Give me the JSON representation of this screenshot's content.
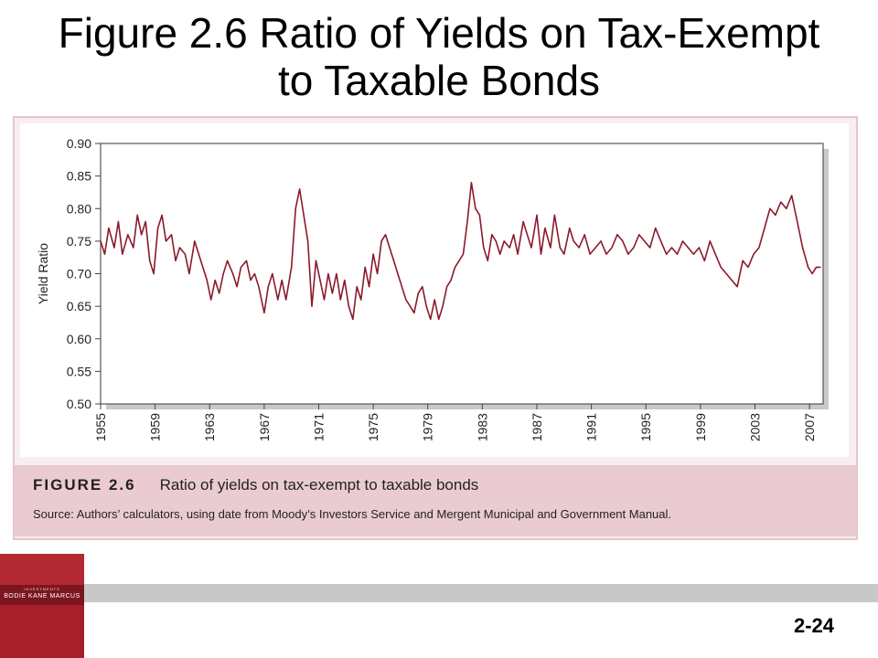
{
  "slide": {
    "title_line1": "Figure 2.6 Ratio of Yields on Tax-Exempt",
    "title_line2": "to Taxable Bonds",
    "page_number": "2-24"
  },
  "caption": {
    "figure_label": "FIGURE 2.6",
    "figure_title": "Ratio of yields on tax-exempt to taxable bonds",
    "source": "Source: Authors’ calculators, using date from Moody’s Investors Service and Mergent Municipal and Government Manual."
  },
  "book": {
    "small_text": "INVESTMENTS",
    "authors": "BODIE  KANE  MARCUS"
  },
  "colors": {
    "line": "#8b1a2b",
    "caption_band": "#e9cbd1",
    "frame_border": "#e6c5cb",
    "book_red": "#a61f2a"
  },
  "chart_data": {
    "type": "line",
    "title": "",
    "xlabel": "",
    "ylabel": "Yield Ratio",
    "xlim": [
      1955,
      2008
    ],
    "ylim": [
      0.5,
      0.9
    ],
    "x_ticks": [
      "1955",
      "1959",
      "1963",
      "1967",
      "1971",
      "1975",
      "1979",
      "1983",
      "1987",
      "1991",
      "1995",
      "1999",
      "2003",
      "2007"
    ],
    "y_ticks": [
      "0.50",
      "0.55",
      "0.60",
      "0.65",
      "0.70",
      "0.75",
      "0.80",
      "0.85",
      "0.90"
    ],
    "grid": false,
    "legend": "none",
    "series": [
      {
        "name": "",
        "x": [
          1955.0,
          1955.3,
          1955.6,
          1956.0,
          1956.3,
          1956.6,
          1957.0,
          1957.4,
          1957.7,
          1958.0,
          1958.3,
          1958.6,
          1958.9,
          1959.2,
          1959.5,
          1959.8,
          1960.2,
          1960.5,
          1960.8,
          1961.2,
          1961.5,
          1961.9,
          1962.2,
          1962.5,
          1962.8,
          1963.1,
          1963.4,
          1963.7,
          1964.0,
          1964.3,
          1964.7,
          1965.0,
          1965.3,
          1965.7,
          1966.0,
          1966.3,
          1966.6,
          1967.0,
          1967.3,
          1967.6,
          1968.0,
          1968.3,
          1968.6,
          1969.0,
          1969.3,
          1969.6,
          1969.9,
          1970.2,
          1970.5,
          1970.8,
          1971.1,
          1971.4,
          1971.7,
          1972.0,
          1972.3,
          1972.6,
          1972.9,
          1973.2,
          1973.5,
          1973.8,
          1974.1,
          1974.4,
          1974.7,
          1975.0,
          1975.3,
          1975.6,
          1975.9,
          1976.2,
          1976.5,
          1976.8,
          1977.1,
          1977.4,
          1977.7,
          1978.0,
          1978.3,
          1978.6,
          1978.9,
          1979.2,
          1979.5,
          1979.8,
          1980.1,
          1980.4,
          1980.7,
          1981.0,
          1981.3,
          1981.6,
          1981.9,
          1982.2,
          1982.5,
          1982.8,
          1983.1,
          1983.4,
          1983.7,
          1984.0,
          1984.3,
          1984.6,
          1985.0,
          1985.3,
          1985.6,
          1986.0,
          1986.3,
          1986.6,
          1987.0,
          1987.3,
          1987.6,
          1988.0,
          1988.3,
          1988.7,
          1989.0,
          1989.4,
          1989.7,
          1990.1,
          1990.5,
          1990.9,
          1991.3,
          1991.7,
          1992.1,
          1992.5,
          1992.9,
          1993.3,
          1993.7,
          1994.1,
          1994.5,
          1994.9,
          1995.3,
          1995.7,
          1996.1,
          1996.5,
          1996.9,
          1997.3,
          1997.7,
          1998.1,
          1998.5,
          1998.9,
          1999.3,
          1999.7,
          2000.1,
          2000.5,
          2000.9,
          2001.3,
          2001.7,
          2002.1,
          2002.5,
          2002.9,
          2003.3,
          2003.7,
          2004.1,
          2004.5,
          2004.9,
          2005.3,
          2005.7,
          2006.1,
          2006.5,
          2006.9,
          2007.2,
          2007.5,
          2007.8
        ],
        "y": [
          0.75,
          0.73,
          0.77,
          0.74,
          0.78,
          0.73,
          0.76,
          0.74,
          0.79,
          0.76,
          0.78,
          0.72,
          0.7,
          0.77,
          0.79,
          0.75,
          0.76,
          0.72,
          0.74,
          0.73,
          0.7,
          0.75,
          0.73,
          0.71,
          0.69,
          0.66,
          0.69,
          0.67,
          0.7,
          0.72,
          0.7,
          0.68,
          0.71,
          0.72,
          0.69,
          0.7,
          0.68,
          0.64,
          0.68,
          0.7,
          0.66,
          0.69,
          0.66,
          0.71,
          0.8,
          0.83,
          0.79,
          0.75,
          0.65,
          0.72,
          0.69,
          0.66,
          0.7,
          0.67,
          0.7,
          0.66,
          0.69,
          0.65,
          0.63,
          0.68,
          0.66,
          0.71,
          0.68,
          0.73,
          0.7,
          0.75,
          0.76,
          0.74,
          0.72,
          0.7,
          0.68,
          0.66,
          0.65,
          0.64,
          0.67,
          0.68,
          0.65,
          0.63,
          0.66,
          0.63,
          0.65,
          0.68,
          0.69,
          0.71,
          0.72,
          0.73,
          0.78,
          0.84,
          0.8,
          0.79,
          0.74,
          0.72,
          0.76,
          0.75,
          0.73,
          0.75,
          0.74,
          0.76,
          0.73,
          0.78,
          0.76,
          0.74,
          0.79,
          0.73,
          0.77,
          0.74,
          0.79,
          0.74,
          0.73,
          0.77,
          0.75,
          0.74,
          0.76,
          0.73,
          0.74,
          0.75,
          0.73,
          0.74,
          0.76,
          0.75,
          0.73,
          0.74,
          0.76,
          0.75,
          0.74,
          0.77,
          0.75,
          0.73,
          0.74,
          0.73,
          0.75,
          0.74,
          0.73,
          0.74,
          0.72,
          0.75,
          0.73,
          0.71,
          0.7,
          0.69,
          0.68,
          0.72,
          0.71,
          0.73,
          0.74,
          0.77,
          0.8,
          0.79,
          0.81,
          0.8,
          0.82,
          0.78,
          0.74,
          0.71,
          0.7,
          0.71,
          0.71
        ]
      }
    ]
  }
}
